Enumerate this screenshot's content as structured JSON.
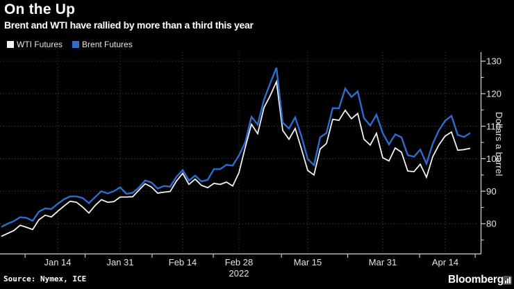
{
  "header": {
    "title": "On the Up",
    "subtitle": "Brent and WTI have rallied by more than a third this year"
  },
  "legend": [
    {
      "label": "WTI Futures",
      "color": "#f2f2f2"
    },
    {
      "label": "Brent Futures",
      "color": "#2e6ccd"
    }
  ],
  "source": "Source: Nymex, ICE",
  "brand": "Bloomberg",
  "colors": {
    "background": "#000000",
    "grid": "#474747",
    "axis": "#d6d6d6",
    "tick_text": "#e3e3e3",
    "wti_line": "#f2f2f2",
    "brent_line": "#2e6ccd"
  },
  "chart_data": {
    "type": "line",
    "title": "On the Up",
    "subtitle": "Brent and WTI have rallied by more than a third this year",
    "xlabel": "",
    "ylabel": "Dollars a barrel",
    "ylim": [
      70.7,
      132.8
    ],
    "yticks": [
      80,
      90,
      100,
      110,
      120,
      130
    ],
    "yticks_minor": [
      75,
      85,
      95,
      105,
      115,
      125
    ],
    "grid": "dotted",
    "legend_position": "top-left",
    "x": [
      "Jan 3",
      "Jan 4",
      "Jan 5",
      "Jan 6",
      "Jan 7",
      "Jan 10",
      "Jan 11",
      "Jan 12",
      "Jan 13",
      "Jan 14",
      "Jan 18",
      "Jan 19",
      "Jan 20",
      "Jan 21",
      "Jan 24",
      "Jan 25",
      "Jan 26",
      "Jan 27",
      "Jan 28",
      "Jan 31",
      "Feb 1",
      "Feb 2",
      "Feb 3",
      "Feb 4",
      "Feb 7",
      "Feb 8",
      "Feb 9",
      "Feb 10",
      "Feb 11",
      "Feb 14",
      "Feb 15",
      "Feb 16",
      "Feb 17",
      "Feb 18",
      "Feb 22",
      "Feb 23",
      "Feb 24",
      "Feb 25",
      "Feb 28",
      "Mar 1",
      "Mar 2",
      "Mar 3",
      "Mar 4",
      "Mar 7",
      "Mar 8",
      "Mar 9",
      "Mar 10",
      "Mar 11",
      "Mar 14",
      "Mar 15",
      "Mar 16",
      "Mar 17",
      "Mar 18",
      "Mar 21",
      "Mar 22",
      "Mar 23",
      "Mar 24",
      "Mar 25",
      "Mar 28",
      "Mar 29",
      "Mar 30",
      "Mar 31",
      "Apr 1",
      "Apr 4",
      "Apr 5",
      "Apr 6",
      "Apr 7",
      "Apr 8",
      "Apr 11",
      "Apr 12",
      "Apr 13",
      "Apr 14",
      "Apr 18",
      "Apr 19",
      "Apr 20",
      "Apr 21"
    ],
    "xticks": [
      {
        "index": 9,
        "label": "Jan 14"
      },
      {
        "index": 19,
        "label": "Jan 31"
      },
      {
        "index": 29,
        "label": "Feb 14"
      },
      {
        "index": 38,
        "label": "Feb 28",
        "sublabel": "2022"
      },
      {
        "index": 49,
        "label": "Mar 15"
      },
      {
        "index": 61,
        "label": "Mar 31"
      },
      {
        "index": 71,
        "label": "Apr 14"
      }
    ],
    "xticks_minor_idx": [
      3.8,
      13.4,
      24.1,
      33.9,
      44.8,
      55.4,
      66.9,
      75.8
    ],
    "series": [
      {
        "name": "WTI Futures",
        "color": "#f2f2f2",
        "values": [
          76.1,
          77.0,
          77.9,
          79.5,
          78.9,
          78.2,
          81.2,
          82.6,
          82.1,
          83.8,
          85.4,
          86.9,
          86.6,
          85.1,
          83.3,
          85.6,
          87.4,
          86.6,
          86.8,
          88.2,
          88.2,
          88.3,
          90.3,
          92.3,
          91.3,
          89.4,
          89.7,
          89.9,
          93.1,
          95.5,
          92.1,
          93.7,
          91.8,
          91.1,
          92.4,
          92.1,
          92.8,
          91.6,
          95.7,
          103.4,
          110.6,
          107.7,
          115.7,
          119.4,
          123.7,
          108.7,
          106.0,
          109.3,
          103.0,
          96.4,
          95.0,
          103.0,
          104.7,
          112.1,
          111.8,
          114.9,
          112.3,
          113.9,
          106.0,
          104.2,
          107.8,
          100.3,
          99.3,
          103.3,
          102.0,
          96.2,
          96.0,
          98.3,
          94.3,
          100.6,
          104.3,
          107.0,
          108.2,
          102.6,
          102.8,
          103.2
        ]
      },
      {
        "name": "Brent Futures",
        "color": "#2e6ccd",
        "values": [
          79.0,
          80.0,
          80.8,
          82.0,
          81.8,
          80.9,
          83.7,
          84.7,
          84.5,
          86.1,
          87.5,
          88.4,
          88.4,
          87.9,
          86.3,
          88.2,
          90.0,
          89.3,
          90.0,
          91.2,
          89.2,
          89.5,
          91.1,
          93.3,
          92.7,
          90.8,
          91.6,
          91.4,
          94.4,
          96.5,
          93.3,
          94.8,
          93.0,
          93.5,
          96.8,
          96.8,
          98.1,
          97.9,
          101.0,
          105.0,
          112.9,
          110.5,
          118.1,
          123.2,
          128.0,
          111.1,
          109.3,
          112.7,
          106.9,
          99.9,
          98.0,
          106.6,
          107.9,
          115.6,
          115.5,
          121.6,
          119.0,
          120.7,
          112.5,
          110.2,
          113.5,
          107.9,
          104.4,
          107.5,
          106.6,
          101.1,
          100.6,
          102.8,
          98.5,
          104.6,
          108.8,
          111.7,
          113.2,
          107.3,
          106.7,
          107.9
        ]
      }
    ]
  }
}
